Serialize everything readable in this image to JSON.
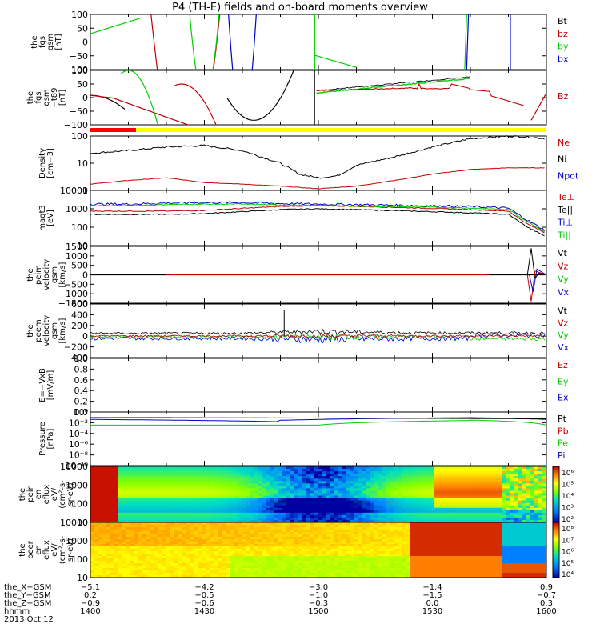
{
  "title": "P4 (TH-E) fields and on-board moments overview",
  "colors": {
    "black": "#000000",
    "red": "#c00000",
    "green": "#00cc00",
    "blue": "#0000cc",
    "bar_red": "#ff0000",
    "bar_yellow": "#ffff00"
  },
  "panels": [
    {
      "id": "fgs",
      "ylabel": [
        "the",
        "fgs",
        "gsm",
        "[nT]"
      ],
      "ylim": [
        -100,
        100
      ],
      "yticks": [
        "100",
        "50",
        "0",
        "−50",
        "−100"
      ],
      "legend": [
        {
          "text": "Bt",
          "color": "black"
        },
        {
          "text": "bz",
          "color": "red"
        },
        {
          "text": "by",
          "color": "green"
        },
        {
          "text": "bx",
          "color": "blue"
        }
      ]
    },
    {
      "id": "fgs_t89",
      "ylabel": [
        "the",
        "fgs",
        "gsm",
        "−t89",
        "[nT]"
      ],
      "ylim": [
        -120,
        120
      ],
      "yticks": [
        "100",
        "50",
        "0",
        "−50",
        "−100"
      ],
      "legend": [
        {
          "text": "Bz",
          "color": "red"
        }
      ]
    },
    {
      "id": "density",
      "ylabel": [
        "Density",
        "[cm−3]"
      ],
      "ylim": [
        0.5,
        200
      ],
      "log": true,
      "yticks": [
        "100",
        "10",
        "1"
      ],
      "legend": [
        {
          "text": "Ne",
          "color": "red"
        },
        {
          "text": "Ni",
          "color": "black"
        },
        {
          "text": "Npot",
          "color": "blue"
        }
      ]
    },
    {
      "id": "temp",
      "ylabel": [
        "magt3",
        "[eV]"
      ],
      "ylim": [
        10,
        10000
      ],
      "log": true,
      "yticks": [
        "10000",
        "1000",
        "100",
        "10"
      ],
      "legend": [
        {
          "text": "Te⊥",
          "color": "red"
        },
        {
          "text": "Te||",
          "color": "black"
        },
        {
          "text": "Ti⊥",
          "color": "blue"
        },
        {
          "text": "Ti||",
          "color": "green"
        }
      ]
    },
    {
      "id": "peim_vel",
      "ylabel": [
        "the",
        "peim",
        "velocity",
        "gsm",
        "[km/s]"
      ],
      "ylim": [
        -1500,
        1500
      ],
      "yticks": [
        "1500",
        "1000",
        "500",
        "0",
        "−500",
        "−1000",
        "−1500"
      ],
      "legend": [
        {
          "text": "Vt",
          "color": "black"
        },
        {
          "text": "Vz",
          "color": "red"
        },
        {
          "text": "Vy",
          "color": "green"
        },
        {
          "text": "Vx",
          "color": "blue"
        }
      ]
    },
    {
      "id": "peem_vel",
      "ylabel": [
        "the",
        "peem",
        "velocity",
        "gsm",
        "[km/s]"
      ],
      "ylim": [
        -400,
        600
      ],
      "yticks": [
        "600",
        "400",
        "200",
        "0",
        "−200",
        "−400"
      ],
      "legend": [
        {
          "text": "Vt",
          "color": "black"
        },
        {
          "text": "Vz",
          "color": "red"
        },
        {
          "text": "Vy",
          "color": "green"
        },
        {
          "text": "Vx",
          "color": "blue"
        }
      ]
    },
    {
      "id": "efield",
      "ylabel": [
        "E=−VxB",
        "[mV/m]"
      ],
      "ylim": [
        0,
        1
      ],
      "yticks": [
        "1.0",
        "0.8",
        "0.6",
        "0.4",
        "0.2",
        "0.0"
      ],
      "legend": [
        {
          "text": "Ez",
          "color": "red"
        },
        {
          "text": "Ey",
          "color": "green"
        },
        {
          "text": "Ex",
          "color": "blue"
        }
      ]
    },
    {
      "id": "pressure",
      "ylabel": [
        "Pressure",
        "[nPa]"
      ],
      "ylim": [
        1e-10,
        10
      ],
      "log": true,
      "yticks": [
        "10⁰",
        "10⁻²",
        "10⁻⁴",
        "10⁻⁶",
        "10⁻⁸",
        "10⁻¹⁰"
      ],
      "legend": [
        {
          "text": "Pt",
          "color": "black"
        },
        {
          "text": "Pb",
          "color": "red"
        },
        {
          "text": "Pe",
          "color": "green"
        },
        {
          "text": "Pi",
          "color": "blue"
        }
      ]
    },
    {
      "id": "peir_spec",
      "ylabel": [
        "the",
        "peir",
        "en",
        "eflux",
        "eV/",
        "(cm²-s-",
        "sr-eV)"
      ],
      "ylim": [
        10,
        20000
      ],
      "log": true,
      "yticks": [
        "10000",
        "1000",
        "100",
        "10"
      ],
      "colorbar": [
        "10⁶",
        "10⁵",
        "10⁴",
        "10³",
        "10²"
      ]
    },
    {
      "id": "peer_spec",
      "ylabel": [
        "the",
        "peer",
        "en",
        "eflux",
        "eV/",
        "(cm²-s-",
        "sr-eV)"
      ],
      "ylim": [
        5,
        20000
      ],
      "log": true,
      "yticks": [
        "10000",
        "1000",
        "100",
        "10"
      ],
      "colorbar": [
        "10⁸",
        "10⁷",
        "10⁶",
        "10⁵",
        "10⁴"
      ]
    }
  ],
  "xaxis": {
    "rows": [
      {
        "label": "the_X−GSM",
        "values": [
          "−5.1",
          "−4.2",
          "−3.0",
          "−1.4",
          "0.9"
        ]
      },
      {
        "label": "the_Y−GSM",
        "values": [
          "0.2",
          "−0.5",
          "−1.0",
          "−1.5",
          "−0.7"
        ]
      },
      {
        "label": "the_Z−GSM",
        "values": [
          "−0.9",
          "−0.6",
          "−0.3",
          "0.0",
          "0.3"
        ]
      },
      {
        "label": "hhmm",
        "values": [
          "1400",
          "1430",
          "1500",
          "1530",
          "1600"
        ]
      }
    ],
    "date": "2013 Oct 12"
  },
  "chart_data": {
    "type": "line",
    "x_unit": "UT hhmm",
    "x_ticks": [
      "1400",
      "1430",
      "1500",
      "1530",
      "1600"
    ],
    "series": [
      {
        "panel": "density",
        "name": "Ni",
        "x": [
          1400,
          1410,
          1420,
          1430,
          1440,
          1450,
          1455,
          1500,
          1505,
          1510,
          1520,
          1530,
          1540,
          1550,
          1555,
          1600
        ],
        "values": [
          30,
          40,
          60,
          70,
          40,
          10,
          3,
          2,
          2.5,
          8,
          20,
          60,
          150,
          200,
          180,
          150
        ]
      },
      {
        "panel": "density",
        "name": "Ne",
        "x": [
          1400,
          1410,
          1420,
          1430,
          1440,
          1450,
          1500,
          1510,
          1520,
          1530,
          1540,
          1550,
          1600
        ],
        "values": [
          1,
          1.5,
          2,
          1.2,
          1,
          0.8,
          0.6,
          0.8,
          1.5,
          3,
          5,
          6,
          6
        ]
      },
      {
        "panel": "temp",
        "name": "Te||",
        "x": [
          1400,
          1410,
          1420,
          1430,
          1440,
          1450,
          1500,
          1510,
          1520,
          1530,
          1540,
          1550,
          1555,
          1600
        ],
        "values": [
          500,
          500,
          500,
          550,
          700,
          900,
          1000,
          900,
          800,
          700,
          600,
          500,
          100,
          30
        ]
      },
      {
        "panel": "temp",
        "name": "Ti||",
        "x": [
          1400,
          1410,
          1420,
          1430,
          1440,
          1450,
          1500,
          1510,
          1520,
          1530,
          1540,
          1550,
          1555,
          1600
        ],
        "values": [
          1500,
          1500,
          1700,
          1800,
          1800,
          1600,
          1500,
          1400,
          1300,
          1200,
          1100,
          900,
          200,
          50
        ]
      }
    ]
  }
}
